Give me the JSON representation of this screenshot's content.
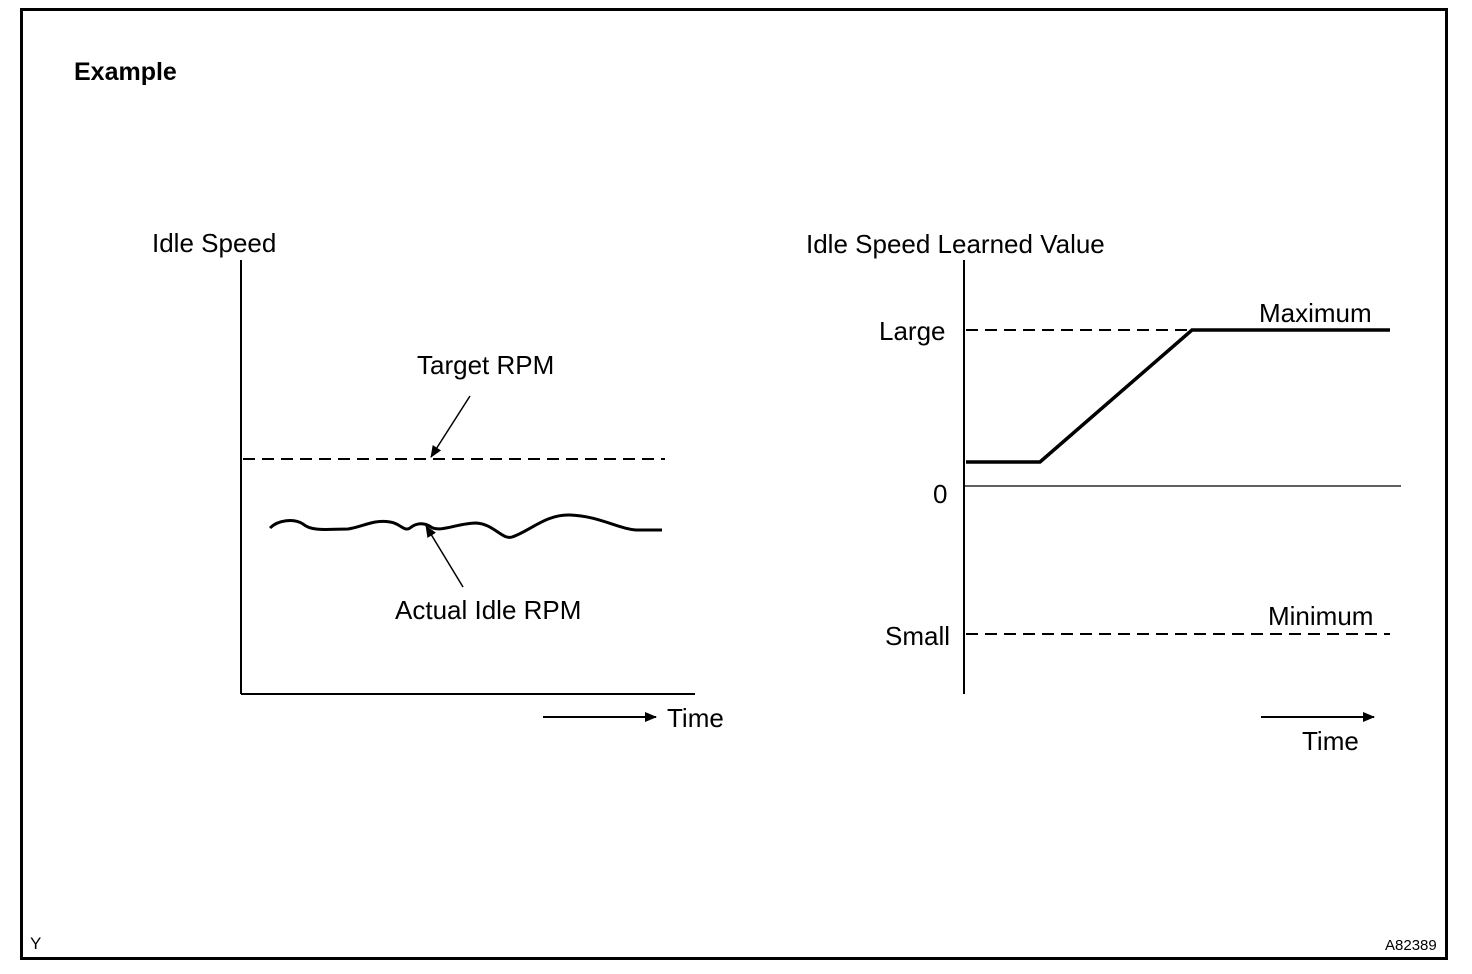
{
  "heading": "Example",
  "left_graph": {
    "y_axis_label": "Idle Speed",
    "target_label": "Target RPM",
    "actual_label": "Actual Idle RPM",
    "x_axis_label": "Time"
  },
  "right_graph": {
    "y_axis_label": "Idle Speed Learned Value",
    "large_label": "Large",
    "zero_label": "0",
    "small_label": "Small",
    "maximum_label": "Maximum",
    "minimum_label": "Minimum",
    "x_axis_label": "Time"
  },
  "footer": {
    "left_code": "Y",
    "figure_id": "A82389"
  }
}
